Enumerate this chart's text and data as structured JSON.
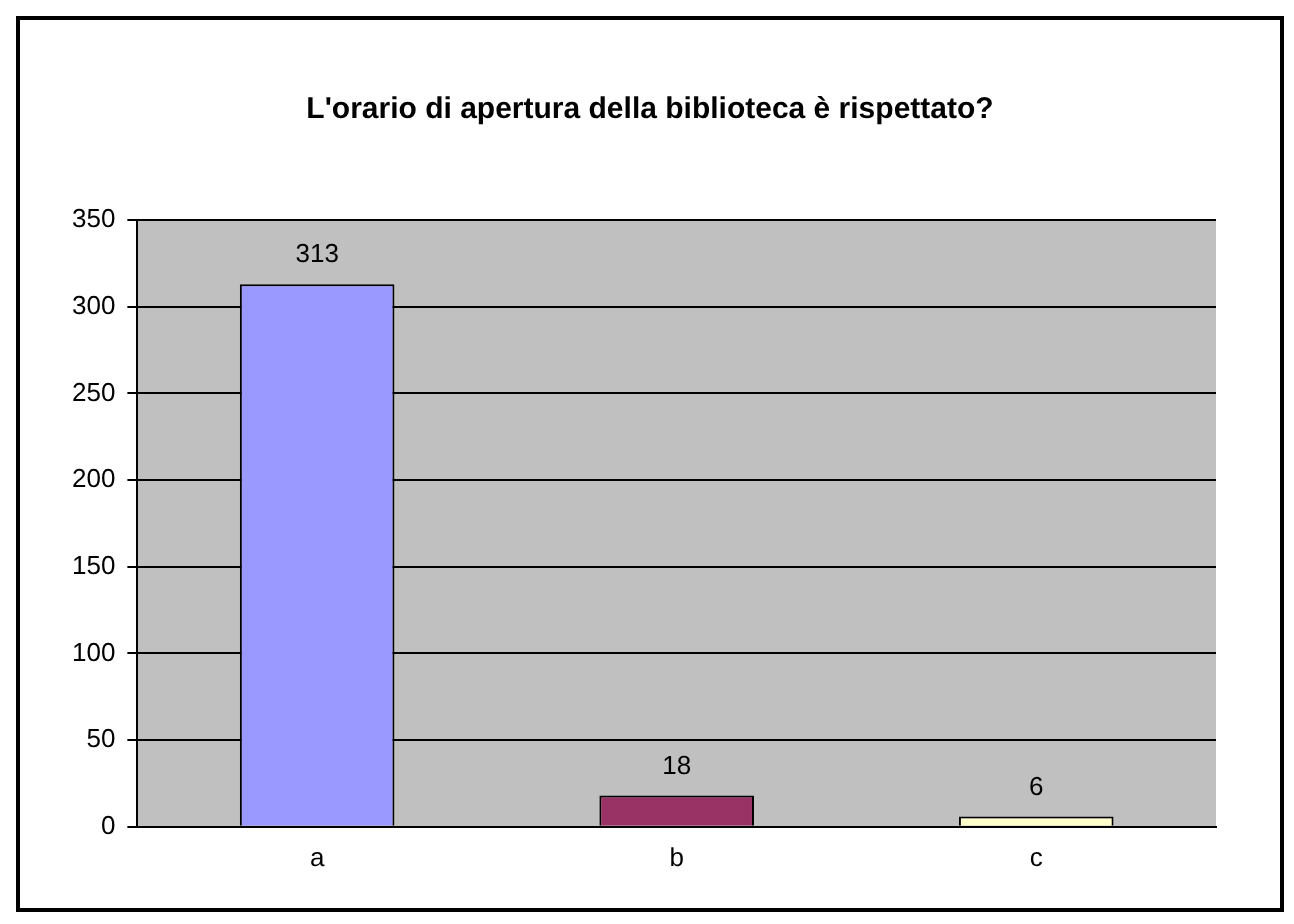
{
  "chart_data": {
    "type": "bar",
    "title": "L'orario di apertura della biblioteca è rispettato?",
    "categories": [
      "a",
      "b",
      "c"
    ],
    "values": [
      313,
      18,
      6
    ],
    "colors": [
      "#9999ff",
      "#993366",
      "#ffffcc"
    ],
    "ylim": [
      0,
      350
    ],
    "yticks": [
      0,
      50,
      100,
      150,
      200,
      250,
      300,
      350
    ],
    "grid": "y",
    "data_labels": true,
    "legend": false
  }
}
